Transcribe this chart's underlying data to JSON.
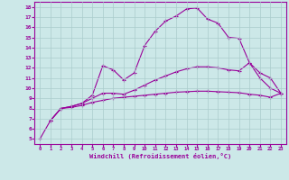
{
  "xlabel": "Windchill (Refroidissement éolien,°C)",
  "background_color": "#cce8e8",
  "line_color": "#990099",
  "grid_color": "#aacccc",
  "xlim": [
    -0.5,
    23.5
  ],
  "ylim": [
    4.5,
    18.5
  ],
  "xticks": [
    0,
    1,
    2,
    3,
    4,
    5,
    6,
    7,
    8,
    9,
    10,
    11,
    12,
    13,
    14,
    15,
    16,
    17,
    18,
    19,
    20,
    21,
    22,
    23
  ],
  "yticks": [
    5,
    6,
    7,
    8,
    9,
    10,
    11,
    12,
    13,
    14,
    15,
    16,
    17,
    18
  ],
  "line1_x": [
    0,
    1,
    2,
    3,
    4,
    5,
    6,
    7,
    8,
    9,
    10,
    11,
    12,
    13,
    14,
    15,
    16,
    17,
    18,
    19,
    20,
    21,
    22,
    23
  ],
  "line1_y": [
    5.0,
    6.8,
    8.0,
    8.2,
    8.5,
    9.3,
    12.2,
    11.8,
    10.8,
    11.5,
    14.2,
    15.6,
    16.6,
    17.1,
    17.8,
    17.9,
    16.8,
    16.4,
    15.0,
    14.9,
    12.5,
    11.0,
    10.0,
    9.5
  ],
  "line2_x": [
    1,
    2,
    3,
    4,
    5,
    6,
    7,
    8,
    9,
    10,
    11,
    12,
    13,
    14,
    15,
    16,
    17,
    18,
    19,
    20,
    21,
    22,
    23
  ],
  "line2_y": [
    6.8,
    8.0,
    8.1,
    8.3,
    8.6,
    8.8,
    9.0,
    9.1,
    9.2,
    9.3,
    9.4,
    9.5,
    9.6,
    9.65,
    9.7,
    9.7,
    9.65,
    9.6,
    9.55,
    9.4,
    9.3,
    9.1,
    9.5
  ],
  "line3_x": [
    1,
    2,
    3,
    4,
    5,
    6,
    7,
    8,
    9,
    10,
    11,
    12,
    13,
    14,
    15,
    16,
    17,
    18,
    19,
    20,
    21,
    22,
    23
  ],
  "line3_y": [
    6.8,
    8.0,
    8.2,
    8.5,
    9.0,
    9.5,
    9.5,
    9.4,
    9.8,
    10.3,
    10.8,
    11.2,
    11.6,
    11.9,
    12.1,
    12.1,
    12.0,
    11.8,
    11.7,
    12.5,
    11.5,
    11.0,
    9.5
  ]
}
